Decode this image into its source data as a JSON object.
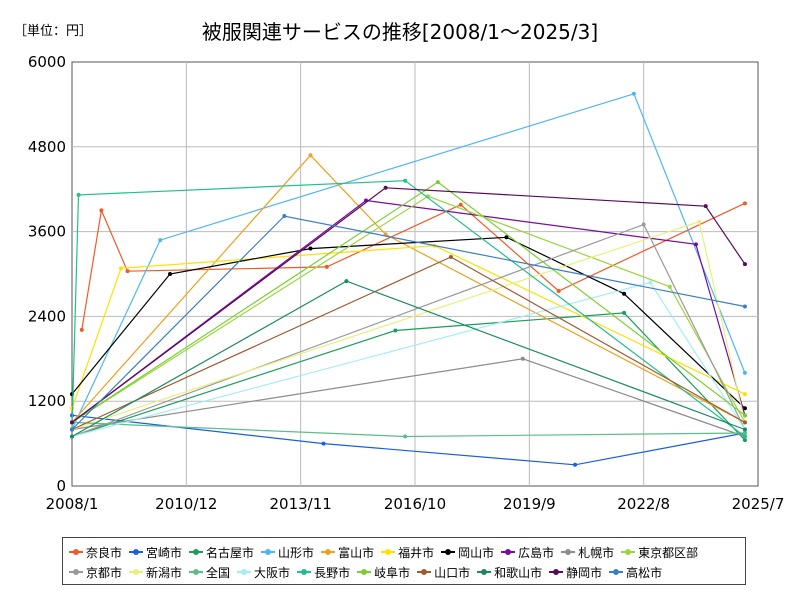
{
  "unit_label": "［単位：円］",
  "chart_data": {
    "type": "line",
    "title": "被服関連サービスの推移[2008/1～2025/3]",
    "xlabel": "",
    "ylabel": "",
    "ylim": [
      0,
      6000
    ],
    "y_ticks": [
      0,
      1200,
      2400,
      3600,
      4800,
      6000
    ],
    "x_range": [
      "2008-01",
      "2025-07"
    ],
    "x_ticks": [
      "2008/1",
      "2010/12",
      "2013/11",
      "2016/10",
      "2019/9",
      "2022/8",
      "2025/7"
    ],
    "grid": true,
    "legend_position": "bottom",
    "series": [
      {
        "name": "奈良市",
        "color": "#f05a28",
        "values": [
          {
            "x": "2008/4",
            "y": 2210
          },
          {
            "x": "2008/10",
            "y": 3900
          },
          {
            "x": "2009/6",
            "y": 3040
          },
          {
            "x": "2014/7",
            "y": 3100
          },
          {
            "x": "2017/12",
            "y": 3980
          },
          {
            "x": "2020/6",
            "y": 2760
          },
          {
            "x": "2025/3",
            "y": 4000
          }
        ]
      },
      {
        "name": "宮崎市",
        "color": "#1a5fe0",
        "values": [
          {
            "x": "2008/1",
            "y": 1000
          },
          {
            "x": "2014/6",
            "y": 600
          },
          {
            "x": "2020/11",
            "y": 300
          },
          {
            "x": "2025/3",
            "y": 750
          }
        ]
      },
      {
        "name": "名古屋市",
        "color": "#1a9e5a",
        "values": [
          {
            "x": "2008/1",
            "y": 700
          },
          {
            "x": "2016/4",
            "y": 2200
          },
          {
            "x": "2022/2",
            "y": 2450
          },
          {
            "x": "2025/3",
            "y": 650
          }
        ]
      },
      {
        "name": "山形市",
        "color": "#4fb6f0",
        "values": [
          {
            "x": "2008/1",
            "y": 800
          },
          {
            "x": "2010/4",
            "y": 3480
          },
          {
            "x": "2022/5",
            "y": 5550
          },
          {
            "x": "2025/3",
            "y": 1600
          }
        ]
      },
      {
        "name": "富山市",
        "color": "#f0a020",
        "values": [
          {
            "x": "2008/1",
            "y": 900
          },
          {
            "x": "2014/2",
            "y": 4680
          },
          {
            "x": "2016/1",
            "y": 3560
          },
          {
            "x": "2025/3",
            "y": 900
          }
        ]
      },
      {
        "name": "福井市",
        "color": "#ffe000",
        "values": [
          {
            "x": "2008/1",
            "y": 1100
          },
          {
            "x": "2009/4",
            "y": 3080
          },
          {
            "x": "2017/4",
            "y": 3400
          },
          {
            "x": "2025/3",
            "y": 1300
          }
        ]
      },
      {
        "name": "岡山市",
        "color": "#000000",
        "values": [
          {
            "x": "2008/1",
            "y": 1300
          },
          {
            "x": "2010/7",
            "y": 3000
          },
          {
            "x": "2014/2",
            "y": 3360
          },
          {
            "x": "2019/2",
            "y": 3520
          },
          {
            "x": "2022/2",
            "y": 2720
          },
          {
            "x": "2025/3",
            "y": 1100
          }
        ]
      },
      {
        "name": "広島市",
        "color": "#7a0aa0",
        "values": [
          {
            "x": "2008/1",
            "y": 900
          },
          {
            "x": "2015/7",
            "y": 4040
          },
          {
            "x": "2023/12",
            "y": 3420
          },
          {
            "x": "2025/3",
            "y": 1000
          }
        ]
      },
      {
        "name": "札幌市",
        "color": "#8c8c8c",
        "values": [
          {
            "x": "2008/1",
            "y": 800
          },
          {
            "x": "2019/7",
            "y": 1800
          },
          {
            "x": "2025/3",
            "y": 700
          }
        ]
      },
      {
        "name": "東京都区部",
        "color": "#9ad640",
        "values": [
          {
            "x": "2008/1",
            "y": 900
          },
          {
            "x": "2017/2",
            "y": 4100
          },
          {
            "x": "2023/4",
            "y": 2820
          },
          {
            "x": "2025/3",
            "y": 900
          }
        ]
      },
      {
        "name": "京都市",
        "color": "#9a9a9a",
        "values": [
          {
            "x": "2008/1",
            "y": 700
          },
          {
            "x": "2022/8",
            "y": 3700
          },
          {
            "x": "2025/3",
            "y": 800
          }
        ]
      },
      {
        "name": "新潟市",
        "color": "#e8f07a",
        "values": [
          {
            "x": "2008/1",
            "y": 800
          },
          {
            "x": "2024/1",
            "y": 3740
          },
          {
            "x": "2025/3",
            "y": 900
          }
        ]
      },
      {
        "name": "全国",
        "color": "#5abf8a",
        "values": [
          {
            "x": "2008/1",
            "y": 900
          },
          {
            "x": "2016/7",
            "y": 700
          },
          {
            "x": "2025/3",
            "y": 750
          }
        ]
      },
      {
        "name": "大阪市",
        "color": "#a6ecf6",
        "values": [
          {
            "x": "2008/1",
            "y": 700
          },
          {
            "x": "2022/10",
            "y": 2880
          },
          {
            "x": "2025/3",
            "y": 800
          }
        ]
      },
      {
        "name": "長野市",
        "color": "#20c08a",
        "values": [
          {
            "x": "2008/1",
            "y": 800
          },
          {
            "x": "2008/3",
            "y": 4120
          },
          {
            "x": "2016/7",
            "y": 4320
          },
          {
            "x": "2025/3",
            "y": 700
          }
        ]
      },
      {
        "name": "岐阜市",
        "color": "#7ad030",
        "values": [
          {
            "x": "2008/1",
            "y": 900
          },
          {
            "x": "2017/5",
            "y": 4300
          },
          {
            "x": "2025/3",
            "y": 1000
          }
        ]
      },
      {
        "name": "山口市",
        "color": "#a05a30",
        "values": [
          {
            "x": "2008/1",
            "y": 800
          },
          {
            "x": "2017/9",
            "y": 3240
          },
          {
            "x": "2025/3",
            "y": 900
          }
        ]
      },
      {
        "name": "和歌山市",
        "color": "#1a8a60",
        "values": [
          {
            "x": "2008/1",
            "y": 700
          },
          {
            "x": "2015/1",
            "y": 2900
          },
          {
            "x": "2025/3",
            "y": 800
          }
        ]
      },
      {
        "name": "静岡市",
        "color": "#5a0a5a",
        "values": [
          {
            "x": "2008/1",
            "y": 900
          },
          {
            "x": "2016/1",
            "y": 4220
          },
          {
            "x": "2024/3",
            "y": 3960
          },
          {
            "x": "2025/3",
            "y": 3140
          }
        ]
      },
      {
        "name": "高松市",
        "color": "#3a7ec8",
        "values": [
          {
            "x": "2008/1",
            "y": 800
          },
          {
            "x": "2013/6",
            "y": 3820
          },
          {
            "x": "2025/3",
            "y": 2540
          }
        ]
      }
    ]
  }
}
